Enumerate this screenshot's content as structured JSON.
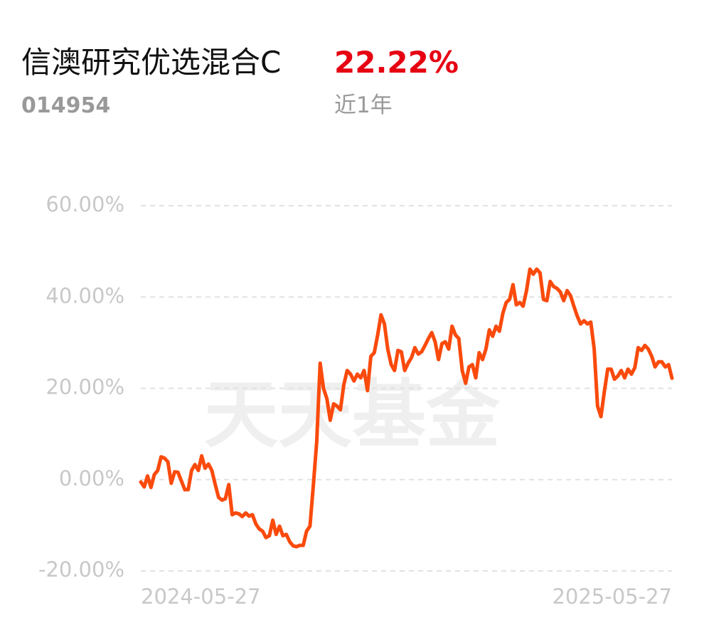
{
  "fund_name": "信澳研究优选混合C",
  "fund_code": "014954",
  "return_label": "22.22%",
  "period_label": "近1年",
  "watermark": "天天基金",
  "chart_data": {
    "type": "line",
    "categories": [
      "2024-05-27",
      null,
      null,
      null,
      null,
      null,
      null,
      null,
      null,
      null,
      null,
      null,
      null,
      null,
      null,
      null,
      null,
      null,
      null,
      null,
      null,
      null,
      null,
      null,
      null,
      null,
      null,
      null,
      null,
      null,
      null,
      null,
      null,
      null,
      null,
      null,
      null,
      null,
      null,
      null,
      null,
      null,
      null,
      null,
      null,
      null,
      null,
      null,
      null,
      null,
      null,
      null,
      null,
      null,
      null,
      null,
      null,
      null,
      null,
      null,
      null,
      null,
      null,
      null,
      null,
      null,
      null,
      null,
      null,
      null,
      null,
      null,
      null,
      null,
      null,
      null,
      null,
      null,
      null,
      null,
      null,
      null,
      null,
      null,
      null,
      null,
      null,
      null,
      null,
      null,
      null,
      null,
      null,
      null,
      null,
      null,
      null,
      null,
      null,
      null,
      null,
      null,
      null,
      null,
      null,
      null,
      null,
      null,
      null,
      null,
      null,
      null,
      null,
      null,
      null,
      null,
      null,
      null,
      null,
      null,
      null,
      null,
      null,
      null,
      null,
      null,
      null,
      null,
      null,
      null,
      null,
      null,
      null,
      null,
      null,
      null,
      null,
      null,
      null,
      null,
      null,
      null,
      null,
      null,
      null,
      null,
      null,
      null,
      null,
      null,
      null,
      null,
      null,
      null,
      null,
      null,
      null,
      "2025-05-27"
    ],
    "series": [
      {
        "color": "#fa4a0c",
        "values": [
          -0.5,
          -1.6,
          0.8,
          -1.7,
          1.1,
          2.0,
          5.0,
          4.7,
          3.9,
          -0.8,
          1.7,
          1.6,
          -0.3,
          -2.2,
          -2.2,
          2.0,
          3.3,
          2.0,
          5.2,
          2.5,
          3.4,
          2.0,
          -1.1,
          -3.9,
          -4.5,
          -4.2,
          -1.1,
          -7.7,
          -7.3,
          -7.5,
          -8.1,
          -7.3,
          -8.0,
          -7.7,
          -9.7,
          -10.8,
          -11.3,
          -12.7,
          -12.3,
          -8.9,
          -12.0,
          -10.2,
          -12.3,
          -12.0,
          -13.6,
          -14.5,
          -14.7,
          -14.4,
          -14.4,
          -11.3,
          -10.2,
          -1.1,
          8.3,
          25.5,
          20.0,
          17.7,
          13.0,
          16.6,
          16.1,
          15.3,
          20.8,
          23.9,
          23.1,
          21.6,
          23.1,
          22.3,
          23.9,
          19.5,
          27.0,
          27.8,
          31.7,
          36.1,
          34.1,
          28.6,
          25.2,
          23.9,
          28.3,
          28.0,
          23.9,
          25.5,
          26.7,
          28.9,
          27.5,
          28.0,
          29.4,
          30.9,
          32.2,
          30.2,
          26.3,
          29.8,
          30.2,
          28.6,
          33.6,
          31.7,
          30.9,
          23.9,
          21.1,
          24.7,
          25.2,
          22.3,
          27.8,
          26.3,
          28.6,
          32.8,
          31.4,
          33.6,
          32.5,
          36.4,
          38.8,
          39.5,
          42.7,
          38.3,
          38.8,
          38.0,
          41.4,
          46.1,
          45.0,
          46.1,
          45.3,
          39.5,
          39.2,
          43.4,
          42.3,
          41.9,
          41.1,
          39.2,
          41.4,
          40.3,
          38.0,
          35.8,
          34.1,
          34.8,
          34.1,
          34.5,
          28.6,
          16.1,
          13.8,
          19.2,
          24.2,
          24.2,
          22.0,
          22.7,
          23.9,
          22.3,
          24.2,
          23.1,
          24.5,
          28.9,
          28.3,
          29.4,
          28.6,
          27.0,
          24.7,
          25.8,
          25.8,
          24.7,
          25.2,
          22.22
        ]
      }
    ],
    "ylim": [
      -20,
      60
    ],
    "yticks": [
      {
        "value": -20,
        "label": "-20.00%"
      },
      {
        "value": 0,
        "label": "0.00%"
      },
      {
        "value": 20,
        "label": "20.00%"
      },
      {
        "value": 40,
        "label": "40.00%"
      },
      {
        "value": 60,
        "label": "60.00%"
      }
    ],
    "grid": true
  }
}
